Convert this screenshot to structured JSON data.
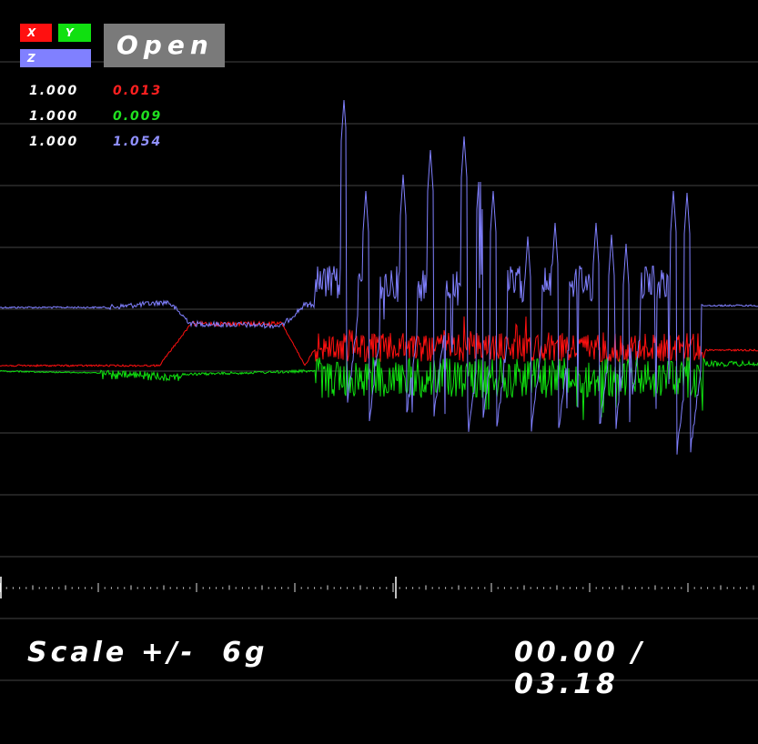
{
  "axes_buttons": {
    "x": "X",
    "y": "Y",
    "z": "Z"
  },
  "open_button": "Open",
  "readouts": [
    {
      "scale": "1.000",
      "value": "0.013",
      "color": "#ff2020"
    },
    {
      "scale": "1.000",
      "value": "0.009",
      "color": "#20e020"
    },
    {
      "scale": "1.000",
      "value": "1.054",
      "color": "#9090ff"
    }
  ],
  "footer": {
    "scale_label": "Scale +/-  6g",
    "time_label": "00.00 / 03.18"
  },
  "colors": {
    "x": "#ff1010",
    "y": "#10e010",
    "z": "#8080ff",
    "grid": "#444444"
  },
  "chart_data": {
    "type": "line",
    "x_range": [
      0,
      3.18
    ],
    "series": [
      {
        "name": "X",
        "color": "#ff1010",
        "baseline": [
          [
            0,
            0.05
          ],
          [
            0.6,
            0.05
          ],
          [
            0.75,
            0.45
          ],
          [
            1.35,
            0.45
          ],
          [
            1.45,
            0.05
          ]
        ]
      },
      {
        "name": "Y",
        "color": "#10e010",
        "baseline": [
          [
            0,
            0
          ],
          [
            0.6,
            0
          ],
          [
            0.75,
            -0.05
          ],
          [
            1.35,
            -0.05
          ],
          [
            1.45,
            0
          ]
        ]
      },
      {
        "name": "Z",
        "color": "#8080ff",
        "baseline": [
          [
            0,
            1.0
          ],
          [
            0.75,
            1.0
          ],
          [
            0.85,
            0.5
          ],
          [
            1.35,
            0.5
          ],
          [
            1.45,
            0.9
          ]
        ]
      }
    ]
  }
}
